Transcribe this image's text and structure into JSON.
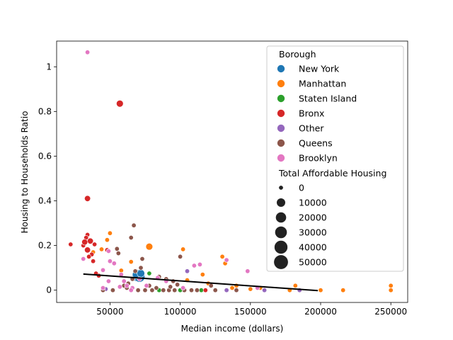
{
  "chart_data": {
    "type": "scatter",
    "title": "",
    "xlabel": "Median income (dollars)",
    "ylabel": "Housing to Households Ratio",
    "xlim": [
      12000,
      262000
    ],
    "ylim": [
      -0.055,
      1.115
    ],
    "x_ticks": [
      50000,
      100000,
      150000,
      200000,
      250000
    ],
    "y_ticks": [
      0.0,
      0.2,
      0.4,
      0.6,
      0.8,
      1.0
    ],
    "grid": false,
    "legend_placement": "top-right",
    "hue_legend_title": "Borough",
    "size_legend_title": "Total Affordable Housing",
    "size_legend_values": [
      0,
      10000,
      20000,
      30000,
      40000,
      50000
    ],
    "colors": {
      "New York": "#1f77b4",
      "Manhattan": "#ff7f0e",
      "Staten Island": "#2ca02c",
      "Bronx": "#d62728",
      "Other": "#9467bd",
      "Queens": "#8c564b",
      "Brooklyn": "#e377c2"
    },
    "trend_line": {
      "x": [
        31000,
        198000
      ],
      "y": [
        0.072,
        -0.002
      ]
    },
    "series": [
      {
        "name": "New York",
        "points": [
          [
            70000,
            0.065,
            30000
          ],
          [
            71000,
            0.06,
            20000
          ],
          [
            69000,
            0.07,
            8000
          ],
          [
            72000,
            0.075,
            5000
          ]
        ]
      },
      {
        "name": "Manhattan",
        "points": [
          [
            50000,
            0.255,
            0
          ],
          [
            48000,
            0.225,
            0
          ],
          [
            78000,
            0.195,
            3000
          ],
          [
            102000,
            0.183,
            0
          ],
          [
            44000,
            0.183,
            0
          ],
          [
            38000,
            0.17,
            0
          ],
          [
            58000,
            0.088,
            0
          ],
          [
            65000,
            0.127,
            0
          ],
          [
            130000,
            0.15,
            0
          ],
          [
            132000,
            0.12,
            0
          ],
          [
            116000,
            0.07,
            0
          ],
          [
            150000,
            0.005,
            0
          ],
          [
            137000,
            0.01,
            0
          ],
          [
            140000,
            0.02,
            0
          ],
          [
            157000,
            0.01,
            0
          ],
          [
            178000,
            0.0,
            0
          ],
          [
            182000,
            0.02,
            0
          ],
          [
            200000,
            0.0,
            0
          ],
          [
            216000,
            0.0,
            0
          ],
          [
            250000,
            0.0,
            0
          ],
          [
            250000,
            0.02,
            0
          ],
          [
            105000,
            0.045,
            0
          ],
          [
            120000,
            0.03,
            0
          ]
        ]
      },
      {
        "name": "Staten Island",
        "points": [
          [
            78000,
            0.075,
            0
          ],
          [
            115000,
            0.0,
            0
          ],
          [
            85000,
            0.0,
            0
          ],
          [
            100000,
            0.0,
            0
          ]
        ]
      },
      {
        "name": "Bronx",
        "points": [
          [
            57000,
            0.835,
            3000
          ],
          [
            34000,
            0.41,
            1000
          ],
          [
            34000,
            0.248,
            0
          ],
          [
            33000,
            0.235,
            0
          ],
          [
            36000,
            0.22,
            1000
          ],
          [
            22000,
            0.205,
            0
          ],
          [
            31000,
            0.2,
            0
          ],
          [
            32000,
            0.215,
            1000
          ],
          [
            39000,
            0.205,
            0
          ],
          [
            34000,
            0.18,
            1000
          ],
          [
            37000,
            0.16,
            0
          ],
          [
            35000,
            0.15,
            0
          ],
          [
            38000,
            0.13,
            0
          ],
          [
            48000,
            0.18,
            0
          ],
          [
            42000,
            0.065,
            0
          ],
          [
            118000,
            0.0,
            0
          ],
          [
            40000,
            0.075,
            0
          ]
        ]
      },
      {
        "name": "Other",
        "points": [
          [
            105000,
            0.085,
            0
          ],
          [
            185000,
            0.0,
            0
          ],
          [
            160000,
            0.0,
            0
          ],
          [
            133000,
            0.0,
            0
          ],
          [
            47000,
            0.005,
            0
          ]
        ]
      },
      {
        "name": "Queens",
        "points": [
          [
            67000,
            0.29,
            0
          ],
          [
            55000,
            0.185,
            0
          ],
          [
            56000,
            0.165,
            0
          ],
          [
            65000,
            0.235,
            0
          ],
          [
            73000,
            0.14,
            0
          ],
          [
            100000,
            0.15,
            0
          ],
          [
            72000,
            0.1,
            0
          ],
          [
            68000,
            0.085,
            0
          ],
          [
            85000,
            0.06,
            0
          ],
          [
            90000,
            0.05,
            0
          ],
          [
            95000,
            0.04,
            0
          ],
          [
            60000,
            0.02,
            0
          ],
          [
            63000,
            0.03,
            0
          ],
          [
            66000,
            0.05,
            0
          ],
          [
            70000,
            0.0,
            0
          ],
          [
            75000,
            0.0,
            0
          ],
          [
            80000,
            0.0,
            0
          ],
          [
            88000,
            0.0,
            0
          ],
          [
            92000,
            0.0,
            0
          ],
          [
            96000,
            0.0,
            0
          ],
          [
            103000,
            0.0,
            0
          ],
          [
            108000,
            0.0,
            0
          ],
          [
            112000,
            0.0,
            0
          ],
          [
            122000,
            0.02,
            0
          ],
          [
            140000,
            0.0,
            0
          ],
          [
            125000,
            0.0,
            0
          ],
          [
            78000,
            0.02,
            0
          ],
          [
            83000,
            0.01,
            0
          ],
          [
            93000,
            0.015,
            0
          ],
          [
            98000,
            0.025,
            0
          ],
          [
            62000,
            0.01,
            0
          ],
          [
            52000,
            0.0,
            0
          ],
          [
            45000,
            0.0,
            0
          ]
        ]
      },
      {
        "name": "Brooklyn",
        "points": [
          [
            34000,
            1.065,
            0
          ],
          [
            49000,
            0.175,
            0
          ],
          [
            50000,
            0.13,
            0
          ],
          [
            31000,
            0.14,
            0
          ],
          [
            53000,
            0.12,
            0
          ],
          [
            45000,
            0.09,
            0
          ],
          [
            58000,
            0.07,
            0
          ],
          [
            60000,
            0.04,
            0
          ],
          [
            62000,
            0.02,
            0
          ],
          [
            57000,
            0.015,
            0
          ],
          [
            66000,
            0.01,
            0
          ],
          [
            71000,
            0.05,
            0
          ],
          [
            76000,
            0.02,
            0
          ],
          [
            110000,
            0.11,
            0
          ],
          [
            114000,
            0.115,
            0
          ],
          [
            133000,
            0.135,
            0
          ],
          [
            148000,
            0.085,
            0
          ],
          [
            155000,
            0.01,
            0
          ],
          [
            90000,
            0.04,
            0
          ],
          [
            84000,
            0.055,
            0
          ],
          [
            102000,
            0.01,
            0
          ],
          [
            45000,
            0.01,
            0
          ],
          [
            49000,
            0.04,
            0
          ],
          [
            65000,
            0.0,
            0
          ]
        ]
      }
    ]
  }
}
